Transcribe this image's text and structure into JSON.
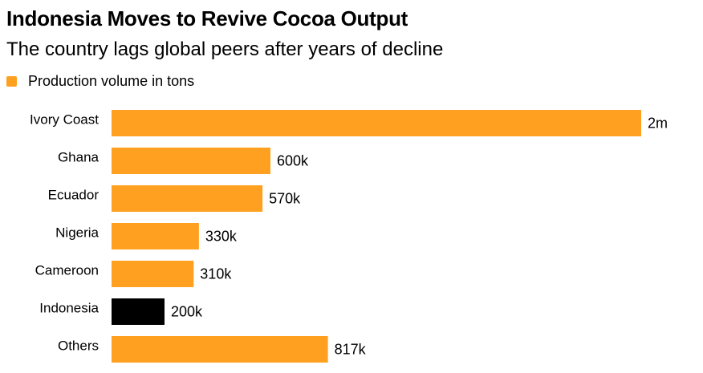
{
  "chart_data": {
    "type": "bar",
    "orientation": "horizontal",
    "title": "Indonesia Moves to Revive Cocoa Output",
    "subtitle": "The country lags global peers after years of decline",
    "categories": [
      "Ivory Coast",
      "Ghana",
      "Ecuador",
      "Nigeria",
      "Cameroon",
      "Indonesia",
      "Others"
    ],
    "series": [
      {
        "name": "Production volume in tons",
        "values": [
          2000000,
          600000,
          570000,
          330000,
          310000,
          200000,
          817000
        ],
        "labels": [
          "2m",
          "600k",
          "570k",
          "330k",
          "310k",
          "200k",
          "817k"
        ]
      }
    ],
    "xlim": [
      0,
      2000000
    ],
    "grid": false,
    "legend_position": "top-left",
    "colors": {
      "default": "#ffa020",
      "highlight": "#000000",
      "highlight_category": "Indonesia"
    }
  }
}
